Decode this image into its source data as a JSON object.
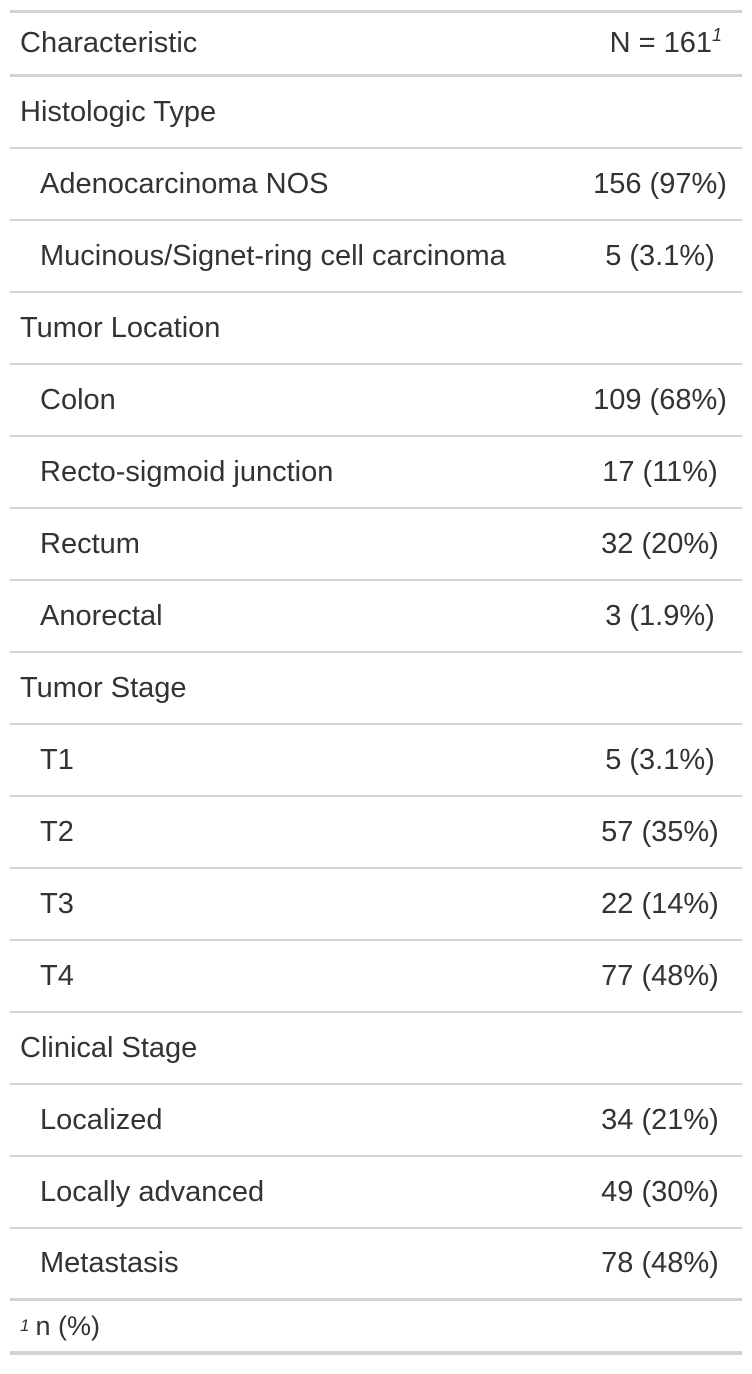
{
  "table": {
    "header": {
      "characteristic": "Characteristic",
      "stat": "N = 161",
      "stat_footnote_mark": "1"
    },
    "rows": [
      {
        "type": "group",
        "label": "Histologic Type",
        "value": ""
      },
      {
        "type": "level",
        "label": "Adenocarcinoma NOS",
        "value": "156 (97%)"
      },
      {
        "type": "level",
        "label": "Mucinous/Signet-ring cell carcinoma",
        "value": "5 (3.1%)"
      },
      {
        "type": "group",
        "label": "Tumor Location",
        "value": ""
      },
      {
        "type": "level",
        "label": "Colon",
        "value": "109 (68%)"
      },
      {
        "type": "level",
        "label": "Recto-sigmoid junction",
        "value": "17 (11%)"
      },
      {
        "type": "level",
        "label": "Rectum",
        "value": "32 (20%)"
      },
      {
        "type": "level",
        "label": "Anorectal",
        "value": "3 (1.9%)"
      },
      {
        "type": "group",
        "label": "Tumor Stage",
        "value": ""
      },
      {
        "type": "level",
        "label": "T1",
        "value": "5 (3.1%)"
      },
      {
        "type": "level",
        "label": "T2",
        "value": "57 (35%)"
      },
      {
        "type": "level",
        "label": "T3",
        "value": "22 (14%)"
      },
      {
        "type": "level",
        "label": "T4",
        "value": "77 (48%)"
      },
      {
        "type": "group",
        "label": "Clinical Stage",
        "value": ""
      },
      {
        "type": "level",
        "label": "Localized",
        "value": "34 (21%)"
      },
      {
        "type": "level",
        "label": "Locally advanced",
        "value": "49 (30%)"
      },
      {
        "type": "level",
        "label": "Metastasis",
        "value": "78 (48%)"
      }
    ],
    "footnote": {
      "mark": "1",
      "text": "n (%)"
    }
  }
}
